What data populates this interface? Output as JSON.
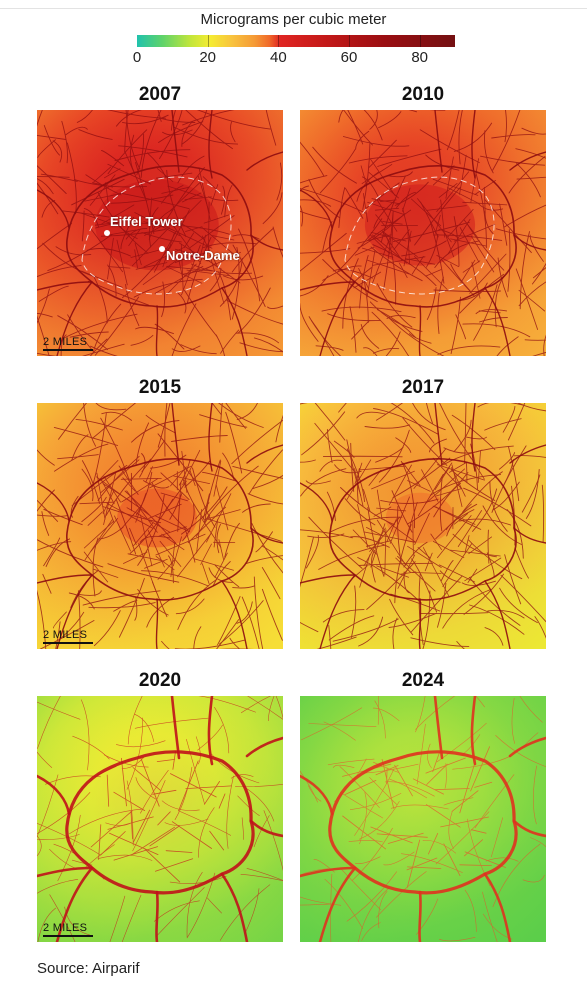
{
  "legend": {
    "title": "Micrograms per cubic meter",
    "ticks": [
      "0",
      "20",
      "40",
      "60",
      "80"
    ],
    "tick_values": [
      0,
      20,
      40,
      60,
      80
    ],
    "max": 90
  },
  "panels": [
    {
      "year": "2007",
      "level": 0.95
    },
    {
      "year": "2010",
      "level": 0.88
    },
    {
      "year": "2015",
      "level": 0.72
    },
    {
      "year": "2017",
      "level": 0.66
    },
    {
      "year": "2020",
      "level": 0.38
    },
    {
      "year": "2024",
      "level": 0.22
    }
  ],
  "landmarks": {
    "eiffel": "Eiffel Tower",
    "notre_dame": "Notre-Dame"
  },
  "scale_label": "2 MILES",
  "source": "Source: Airparif",
  "colors": {
    "road_dark": "#8e0c10",
    "high": "#d91d1c",
    "mid": "#f5922f",
    "low": "#f2ea38",
    "clean": "#6fd24a"
  }
}
